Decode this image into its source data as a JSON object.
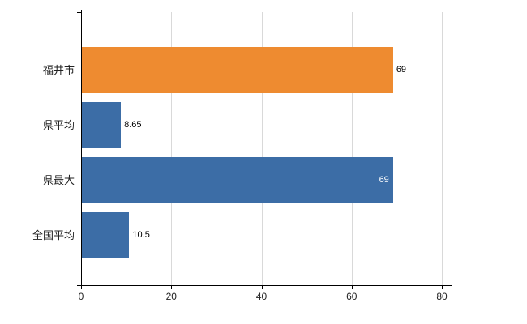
{
  "chart_data": {
    "type": "bar",
    "orientation": "horizontal",
    "title": "",
    "xlabel": "",
    "ylabel": "",
    "categories": [
      "福井市",
      "県平均",
      "県最大",
      "全国平均"
    ],
    "values": [
      69,
      8.65,
      69,
      10.5
    ],
    "value_labels": [
      "69",
      "8.65",
      "69",
      "10.5"
    ],
    "bar_colors": [
      "#ee8b30",
      "#3c6da6",
      "#3c6da6",
      "#3c6da6"
    ],
    "value_label_placement": [
      "outside",
      "outside",
      "inside",
      "outside"
    ],
    "value_label_colors": [
      "#000000",
      "#000000",
      "#ffffff",
      "#000000"
    ],
    "xlim": [
      0,
      80
    ],
    "x_ticks": [
      0,
      20,
      40,
      60,
      80
    ],
    "grid": true,
    "legend": false,
    "background": "#ffffff",
    "gridline_color": "#d9d9d9",
    "axis_color": "#000000"
  }
}
